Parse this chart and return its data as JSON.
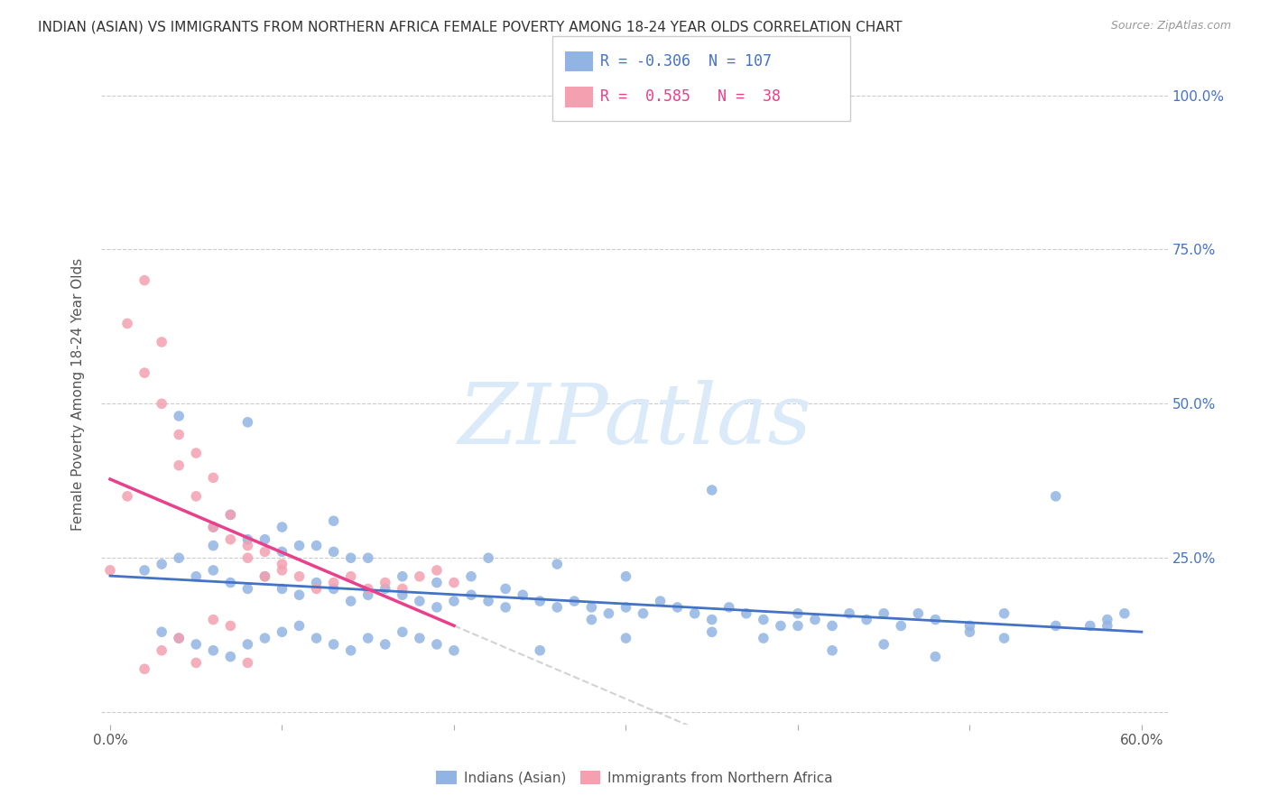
{
  "title": "INDIAN (ASIAN) VS IMMIGRANTS FROM NORTHERN AFRICA FEMALE POVERTY AMONG 18-24 YEAR OLDS CORRELATION CHART",
  "source": "Source: ZipAtlas.com",
  "ylabel": "Female Poverty Among 18-24 Year Olds",
  "xlim": [
    0.0,
    0.6
  ],
  "ylim": [
    0.0,
    1.0
  ],
  "legend_r_blue": "-0.306",
  "legend_n_blue": "107",
  "legend_r_pink": "0.585",
  "legend_n_pink": "38",
  "legend_label_blue": "Indians (Asian)",
  "legend_label_pink": "Immigrants from Northern Africa",
  "blue_color": "#92b4e3",
  "pink_color": "#f4a0b0",
  "blue_line_color": "#4472c4",
  "pink_line_color": "#e8408a",
  "blue_scatter_x": [
    0.02,
    0.03,
    0.04,
    0.05,
    0.06,
    0.07,
    0.08,
    0.09,
    0.1,
    0.11,
    0.12,
    0.13,
    0.14,
    0.15,
    0.16,
    0.17,
    0.18,
    0.19,
    0.2,
    0.21,
    0.22,
    0.23,
    0.24,
    0.25,
    0.26,
    0.27,
    0.28,
    0.29,
    0.3,
    0.31,
    0.32,
    0.33,
    0.34,
    0.35,
    0.36,
    0.37,
    0.38,
    0.39,
    0.4,
    0.41,
    0.42,
    0.43,
    0.44,
    0.45,
    0.46,
    0.47,
    0.48,
    0.5,
    0.52,
    0.55,
    0.57,
    0.58,
    0.59,
    0.06,
    0.08,
    0.1,
    0.12,
    0.14,
    0.06,
    0.09,
    0.11,
    0.13,
    0.15,
    0.17,
    0.19,
    0.21,
    0.23,
    0.07,
    0.1,
    0.13,
    0.03,
    0.04,
    0.05,
    0.06,
    0.07,
    0.08,
    0.09,
    0.1,
    0.11,
    0.12,
    0.13,
    0.14,
    0.15,
    0.16,
    0.17,
    0.18,
    0.19,
    0.2,
    0.25,
    0.3,
    0.35,
    0.4,
    0.45,
    0.5,
    0.55,
    0.04,
    0.08,
    0.28,
    0.35,
    0.38,
    0.42,
    0.48,
    0.52,
    0.58,
    0.22,
    0.26,
    0.3
  ],
  "blue_scatter_y": [
    0.23,
    0.24,
    0.25,
    0.22,
    0.23,
    0.21,
    0.2,
    0.22,
    0.2,
    0.19,
    0.21,
    0.2,
    0.18,
    0.19,
    0.2,
    0.19,
    0.18,
    0.17,
    0.18,
    0.19,
    0.18,
    0.17,
    0.19,
    0.18,
    0.17,
    0.18,
    0.17,
    0.16,
    0.17,
    0.16,
    0.18,
    0.17,
    0.16,
    0.15,
    0.17,
    0.16,
    0.15,
    0.14,
    0.16,
    0.15,
    0.14,
    0.16,
    0.15,
    0.16,
    0.14,
    0.16,
    0.15,
    0.14,
    0.16,
    0.35,
    0.14,
    0.15,
    0.16,
    0.27,
    0.28,
    0.26,
    0.27,
    0.25,
    0.3,
    0.28,
    0.27,
    0.26,
    0.25,
    0.22,
    0.21,
    0.22,
    0.2,
    0.32,
    0.3,
    0.31,
    0.13,
    0.12,
    0.11,
    0.1,
    0.09,
    0.11,
    0.12,
    0.13,
    0.14,
    0.12,
    0.11,
    0.1,
    0.12,
    0.11,
    0.13,
    0.12,
    0.11,
    0.1,
    0.1,
    0.12,
    0.13,
    0.14,
    0.11,
    0.13,
    0.14,
    0.48,
    0.47,
    0.15,
    0.36,
    0.12,
    0.1,
    0.09,
    0.12,
    0.14,
    0.25,
    0.24,
    0.22
  ],
  "pink_scatter_x": [
    0.0,
    0.01,
    0.01,
    0.02,
    0.02,
    0.03,
    0.03,
    0.04,
    0.04,
    0.05,
    0.05,
    0.06,
    0.06,
    0.07,
    0.07,
    0.08,
    0.08,
    0.09,
    0.09,
    0.1,
    0.1,
    0.11,
    0.12,
    0.13,
    0.14,
    0.15,
    0.16,
    0.17,
    0.18,
    0.19,
    0.2,
    0.02,
    0.03,
    0.04,
    0.05,
    0.06,
    0.07,
    0.08
  ],
  "pink_scatter_y": [
    0.23,
    0.35,
    0.63,
    0.55,
    0.7,
    0.6,
    0.5,
    0.45,
    0.4,
    0.42,
    0.35,
    0.38,
    0.3,
    0.32,
    0.28,
    0.27,
    0.25,
    0.26,
    0.22,
    0.24,
    0.23,
    0.22,
    0.2,
    0.21,
    0.22,
    0.2,
    0.21,
    0.2,
    0.22,
    0.23,
    0.21,
    0.07,
    0.1,
    0.12,
    0.08,
    0.15,
    0.14,
    0.08
  ]
}
